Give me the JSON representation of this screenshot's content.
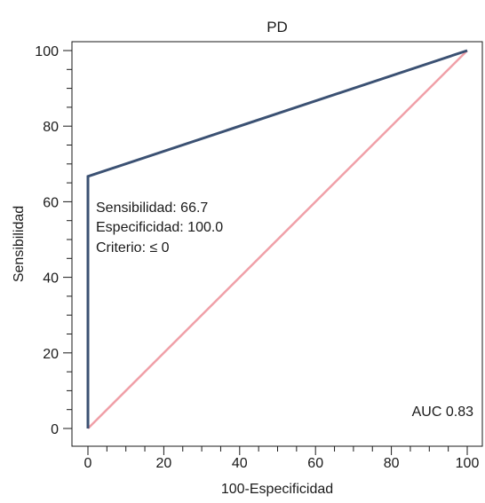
{
  "chart_data": {
    "type": "line",
    "title": "PD",
    "xlabel": "100-Especificidad",
    "ylabel": "Sensibilidad",
    "xlim": [
      0,
      100
    ],
    "ylim": [
      0,
      100
    ],
    "x_ticks": [
      0,
      20,
      40,
      60,
      80,
      100
    ],
    "y_ticks": [
      0,
      20,
      40,
      60,
      80,
      100
    ],
    "minor_tick_step": 5,
    "grid": false,
    "series": [
      {
        "color": "#3b5173",
        "points": [
          [
            0,
            0
          ],
          [
            0,
            66.7
          ],
          [
            100,
            100
          ]
        ]
      },
      {
        "color": "#f0a0a8",
        "points": [
          [
            0,
            0
          ],
          [
            100,
            100
          ]
        ]
      }
    ],
    "annotations": {
      "sensitivity": "Sensibilidad: 66.7",
      "specificity": "Especificidad: 100.0",
      "criterion": "Criterio: ≤ 0",
      "auc": "AUC 0.83"
    }
  }
}
